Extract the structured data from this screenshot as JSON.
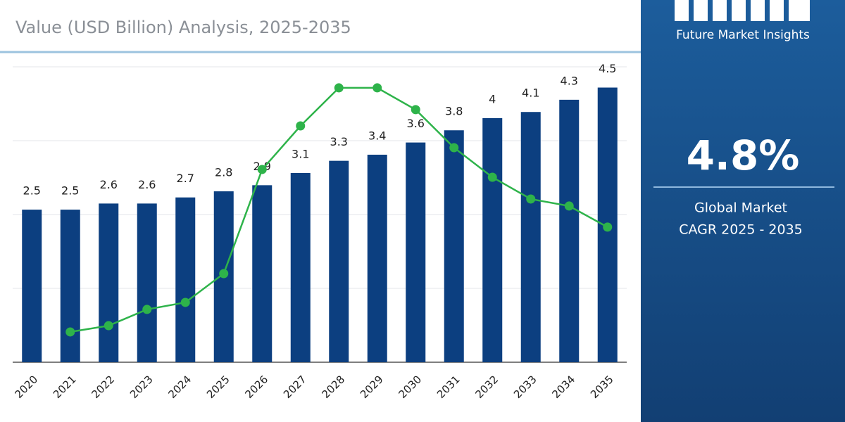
{
  "chart_data": {
    "type": "bar",
    "subtitle": "Value (USD Billion) Analysis, 2025-2035",
    "categories": [
      "2020",
      "2021",
      "2022",
      "2023",
      "2024",
      "2025",
      "2026",
      "2027",
      "2028",
      "2029",
      "2030",
      "2031",
      "2032",
      "2033",
      "2034",
      "2035"
    ],
    "series": [
      {
        "type": "bar",
        "color": "#0c3f80",
        "values": [
          2.5,
          2.5,
          2.6,
          2.6,
          2.7,
          2.8,
          2.9,
          3.1,
          3.3,
          3.4,
          3.6,
          3.8,
          4,
          4.1,
          4.3,
          4.5
        ]
      },
      {
        "type": "line",
        "axis": "y2",
        "color": "#2eb34a",
        "values": [
          null,
          0.82,
          0.99,
          1.43,
          1.62,
          2.4,
          5.22,
          6.4,
          7.43,
          7.43,
          6.84,
          5.81,
          5.01,
          4.42,
          4.23,
          3.66
        ]
      }
    ],
    "ylim": [
      0,
      4.84
    ],
    "y2lim": [
      0,
      8
    ],
    "grid": true
  },
  "panel": {
    "brand": "Future Market Insights",
    "cagr": "4.8%",
    "caption": [
      "Global Market",
      "CAGR 2025 - 2035"
    ]
  }
}
